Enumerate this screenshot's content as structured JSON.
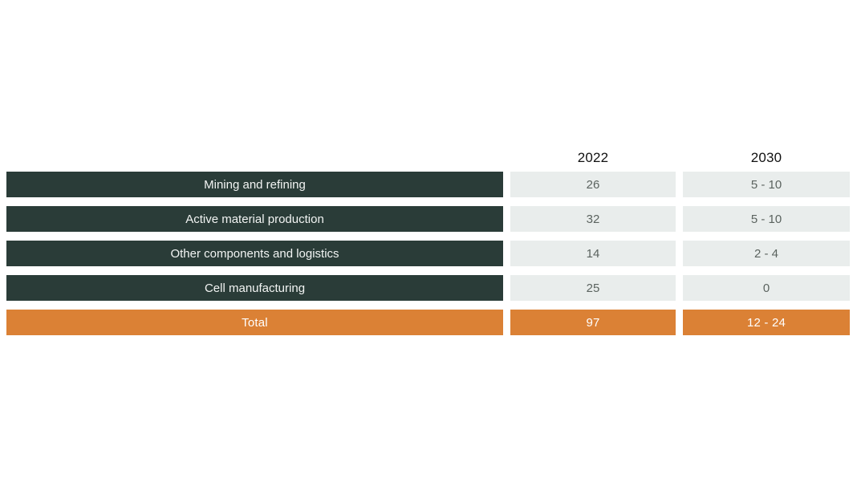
{
  "table": {
    "columns": [
      "2022",
      "2030"
    ],
    "rows": [
      {
        "label": "Mining and refining",
        "values": [
          "26",
          "5 - 10"
        ]
      },
      {
        "label": "Active material production",
        "values": [
          "32",
          "5 - 10"
        ]
      },
      {
        "label": "Other components and logistics",
        "values": [
          "14",
          "2 - 4"
        ]
      },
      {
        "label": "Cell manufacturing",
        "values": [
          "25",
          "0"
        ]
      }
    ],
    "total": {
      "label": "Total",
      "values": [
        "97",
        "12 - 24"
      ]
    }
  },
  "colors": {
    "label-bg": "#2a3c38",
    "label-text": "#f2f4f3",
    "value-bg": "#e9edec",
    "value-text": "#5b635f",
    "header-text": "#111111",
    "total-bg": "#db8135",
    "total-text": "#ffffff"
  },
  "chart_data": {
    "type": "table",
    "columns": [
      "",
      "2022",
      "2030"
    ],
    "rows": [
      [
        "Mining and refining",
        "26",
        "5 - 10"
      ],
      [
        "Active material production",
        "32",
        "5 - 10"
      ],
      [
        "Other components and logistics",
        "14",
        "2 - 4"
      ],
      [
        "Cell manufacturing",
        "25",
        "0"
      ],
      [
        "Total",
        "97",
        "12 - 24"
      ]
    ],
    "legend_position": "none",
    "grid": false
  }
}
